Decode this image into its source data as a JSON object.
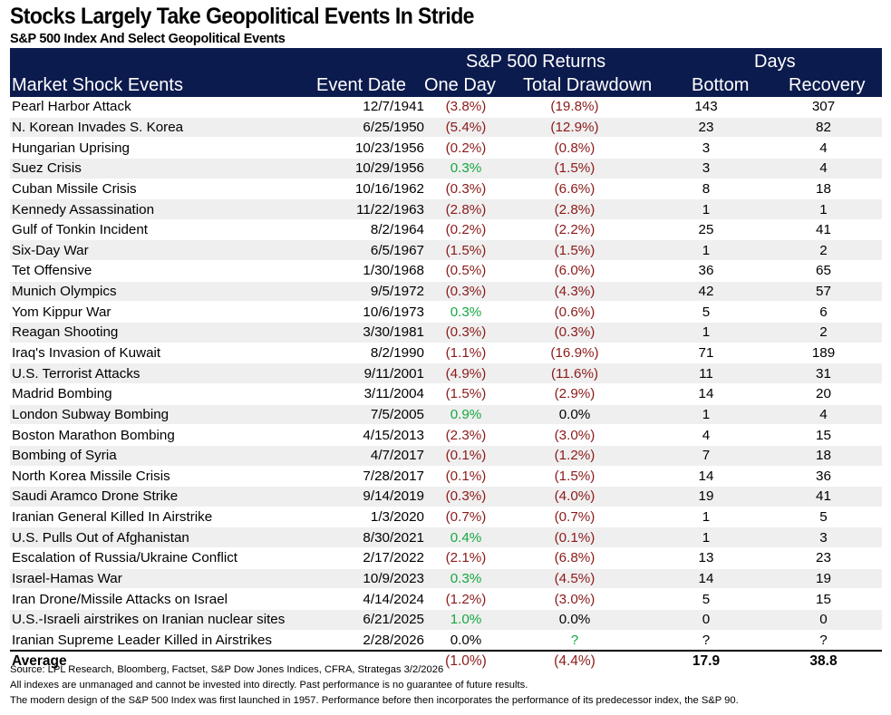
{
  "title": "Stocks Largely Take Geopolitical Events In Stride",
  "subtitle": "S&P 500 Index And Select Geopolitical Events",
  "colors": {
    "header_bg": "#0c1b4d",
    "negative": "#8b1a1a",
    "positive": "#14a840",
    "stripe": "#efefef"
  },
  "header": {
    "group_returns": "S&P 500 Returns",
    "group_days": "Days",
    "columns": [
      "Market Shock Events",
      "Event Date",
      "One Day",
      "Total Drawdown",
      "Bottom",
      "Recovery"
    ]
  },
  "rows": [
    [
      "Pearl Harbor Attack",
      "12/7/1941",
      "(3.8%)",
      "(19.8%)",
      "143",
      "307"
    ],
    [
      "N. Korean Invades S. Korea",
      "6/25/1950",
      "(5.4%)",
      "(12.9%)",
      "23",
      "82"
    ],
    [
      "Hungarian Uprising",
      "10/23/1956",
      "(0.2%)",
      "(0.8%)",
      "3",
      "4"
    ],
    [
      "Suez Crisis",
      "10/29/1956",
      "0.3%",
      "(1.5%)",
      "3",
      "4"
    ],
    [
      "Cuban Missile Crisis",
      "10/16/1962",
      "(0.3%)",
      "(6.6%)",
      "8",
      "18"
    ],
    [
      "Kennedy Assassination",
      "11/22/1963",
      "(2.8%)",
      "(2.8%)",
      "1",
      "1"
    ],
    [
      "Gulf of Tonkin Incident",
      "8/2/1964",
      "(0.2%)",
      "(2.2%)",
      "25",
      "41"
    ],
    [
      "Six-Day War",
      "6/5/1967",
      "(1.5%)",
      "(1.5%)",
      "1",
      "2"
    ],
    [
      "Tet Offensive",
      "1/30/1968",
      "(0.5%)",
      "(6.0%)",
      "36",
      "65"
    ],
    [
      "Munich Olympics",
      "9/5/1972",
      "(0.3%)",
      "(4.3%)",
      "42",
      "57"
    ],
    [
      "Yom Kippur War",
      "10/6/1973",
      "0.3%",
      "(0.6%)",
      "5",
      "6"
    ],
    [
      "Reagan Shooting",
      "3/30/1981",
      "(0.3%)",
      "(0.3%)",
      "1",
      "2"
    ],
    [
      "Iraq's Invasion of Kuwait",
      "8/2/1990",
      "(1.1%)",
      "(16.9%)",
      "71",
      "189"
    ],
    [
      "U.S. Terrorist Attacks",
      "9/11/2001",
      "(4.9%)",
      "(11.6%)",
      "11",
      "31"
    ],
    [
      "Madrid Bombing",
      "3/11/2004",
      "(1.5%)",
      "(2.9%)",
      "14",
      "20"
    ],
    [
      "London Subway Bombing",
      "7/5/2005",
      "0.9%",
      "0.0%",
      "1",
      "4"
    ],
    [
      "Boston Marathon Bombing",
      "4/15/2013",
      "(2.3%)",
      "(3.0%)",
      "4",
      "15"
    ],
    [
      "Bombing of Syria",
      "4/7/2017",
      "(0.1%)",
      "(1.2%)",
      "7",
      "18"
    ],
    [
      "North Korea Missile Crisis",
      "7/28/2017",
      "(0.1%)",
      "(1.5%)",
      "14",
      "36"
    ],
    [
      "Saudi Aramco Drone Strike",
      "9/14/2019",
      "(0.3%)",
      "(4.0%)",
      "19",
      "41"
    ],
    [
      "Iranian General Killed In Airstrike",
      "1/3/2020",
      "(0.7%)",
      "(0.7%)",
      "1",
      "5"
    ],
    [
      "U.S. Pulls Out of Afghanistan",
      "8/30/2021",
      "0.4%",
      "(0.1%)",
      "1",
      "3"
    ],
    [
      "Escalation of Russia/Ukraine Conflict",
      "2/17/2022",
      "(2.1%)",
      "(6.8%)",
      "13",
      "23"
    ],
    [
      "Israel-Hamas War",
      "10/9/2023",
      "0.3%",
      "(4.5%)",
      "14",
      "19"
    ],
    [
      "Iran Drone/Missile Attacks on Israel",
      "4/14/2024",
      "(1.2%)",
      "(3.0%)",
      "5",
      "15"
    ],
    [
      "U.S.-Israeli airstrikes on Iranian nuclear sites",
      "6/21/2025",
      "1.0%",
      "0.0%",
      "0",
      "0"
    ],
    [
      "Iranian Supreme Leader Killed in Airstrikes",
      "2/28/2026",
      "0.0%",
      "?",
      "?",
      "?"
    ]
  ],
  "average": {
    "label": "Average",
    "one_day": "(1.0%)",
    "drawdown": "(4.4%)",
    "bottom": "17.9",
    "recovery": "38.8"
  },
  "footnotes": [
    "Source: LPL Research, Bloomberg, Factset, S&P Dow Jones Indices, CFRA, Strategas 3/2/2026",
    "All indexes are unmanaged and cannot be invested into directly.  Past performance is no guarantee of future results.",
    "The modern design of the S&P 500 Index was first launched in 1957. Performance before then incorporates the performance of its predecessor index, the S&P 90."
  ]
}
